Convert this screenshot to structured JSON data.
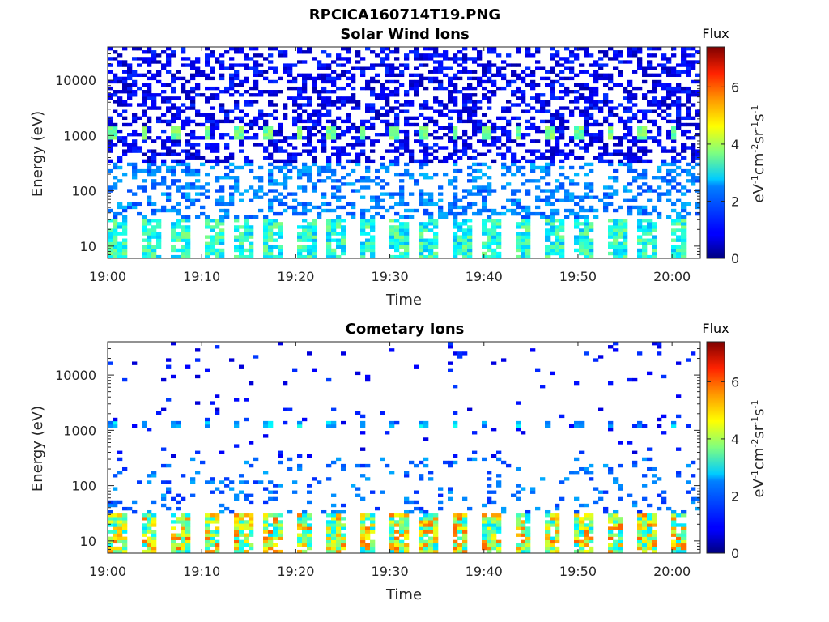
{
  "figure_title": "RPCICA160714T19.PNG",
  "chart_data": [
    {
      "type": "heatmap",
      "title": "Solar Wind Ions",
      "xlabel": "Time",
      "ylabel": "Energy (eV)",
      "y_scale": "log",
      "xlim": [
        "19:00",
        "20:03"
      ],
      "ylim": [
        6,
        40000
      ],
      "x_ticks": [
        "19:00",
        "19:10",
        "19:20",
        "19:30",
        "19:40",
        "19:50",
        "20:00"
      ],
      "y_ticks": [
        "10",
        "100",
        "1000",
        "10000"
      ],
      "colorbar": {
        "title": "Flux",
        "label": "eV-1cm-2sr-1s-1",
        "ticks": [
          "0",
          "2",
          "4",
          "6"
        ],
        "range": [
          0,
          7.4
        ],
        "colormap": "jet"
      },
      "description_bands": [
        {
          "energy_range": [
            6,
            30
          ],
          "typical_flux": 3.0,
          "pattern": "periodic blocks, about 3 min period"
        },
        {
          "energy_range": [
            30,
            300
          ],
          "typical_flux": 1.8,
          "pattern": "scattered"
        },
        {
          "energy_range": [
            800,
            1300
          ],
          "typical_flux": 3.5,
          "pattern": "periodic spots, about 3 min period"
        },
        {
          "energy_range": [
            300,
            40000
          ],
          "typical_flux": 0.6,
          "pattern": "dense background"
        }
      ]
    },
    {
      "type": "heatmap",
      "title": "Cometary Ions",
      "xlabel": "Time",
      "ylabel": "Energy (eV)",
      "y_scale": "log",
      "xlim": [
        "19:00",
        "20:03"
      ],
      "ylim": [
        6,
        40000
      ],
      "x_ticks": [
        "19:00",
        "19:10",
        "19:20",
        "19:30",
        "19:40",
        "19:50",
        "20:00"
      ],
      "y_ticks": [
        "10",
        "100",
        "1000",
        "10000"
      ],
      "colorbar": {
        "title": "Flux",
        "label": "eV-1cm-2sr-1s-1",
        "ticks": [
          "0",
          "2",
          "4",
          "6"
        ],
        "range": [
          0,
          7.4
        ],
        "colormap": "jet"
      },
      "description_bands": [
        {
          "energy_range": [
            6,
            30
          ],
          "typical_flux": 4.8,
          "pattern": "periodic bright blocks, about 3 min period"
        },
        {
          "energy_range": [
            30,
            300
          ],
          "typical_flux": 1.5,
          "pattern": "scattered"
        },
        {
          "energy_range": [
            1000,
            1300
          ],
          "typical_flux": 2.0,
          "pattern": "periodic pairs, about 3 min period"
        },
        {
          "energy_range": [
            300,
            40000
          ],
          "typical_flux": 0.8,
          "pattern": "sparse"
        }
      ]
    }
  ]
}
